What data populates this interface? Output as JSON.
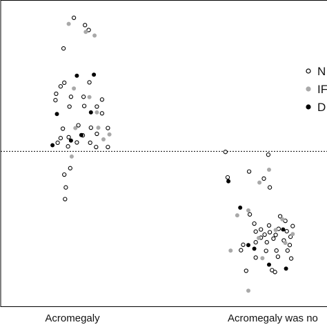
{
  "chart_data": {
    "type": "scatter",
    "title": "",
    "xlabel": "",
    "ylabel": "",
    "categories": [
      "Acromegaly",
      "Acromegaly was no"
    ],
    "ylim": [
      0,
      100
    ],
    "reference_line": {
      "y": 50.6,
      "style": "dotted"
    },
    "legend_position": "right",
    "series": [
      {
        "name": "N",
        "marker": "open-circle",
        "color": "#000000",
        "points": [
          [
            1.02,
            94.2
          ],
          [
            1.17,
            91.8
          ],
          [
            1.22,
            90.2
          ],
          [
            0.88,
            84.2
          ],
          [
            0.89,
            73.0
          ],
          [
            0.84,
            71.8
          ],
          [
            1.23,
            73.1
          ],
          [
            0.98,
            68.4
          ],
          [
            0.78,
            69.4
          ],
          [
            1.15,
            68.4
          ],
          [
            1.4,
            67.5
          ],
          [
            0.77,
            67.3
          ],
          [
            0.96,
            65.2
          ],
          [
            1.16,
            65.4
          ],
          [
            1.33,
            65.2
          ],
          [
            1.4,
            63.0
          ],
          [
            0.87,
            58.0
          ],
          [
            1.08,
            59.1
          ],
          [
            1.25,
            58.3
          ],
          [
            1.48,
            58.2
          ],
          [
            1.33,
            56.3
          ],
          [
            1.14,
            55.8
          ],
          [
            0.95,
            55.2
          ],
          [
            0.84,
            54.9
          ],
          [
            1.06,
            53.5
          ],
          [
            0.8,
            53.4
          ],
          [
            1.24,
            53.4
          ],
          [
            1.32,
            52.0
          ],
          [
            1.48,
            52.0
          ],
          [
            0.94,
            52.2
          ],
          [
            0.97,
            45.1
          ],
          [
            0.89,
            43.0
          ],
          [
            0.91,
            38.8
          ],
          [
            0.9,
            35.0
          ],
          [
            3.07,
            50.4
          ],
          [
            3.65,
            49.5
          ],
          [
            3.39,
            44.0
          ],
          [
            3.1,
            42.1
          ],
          [
            3.59,
            41.7
          ],
          [
            3.67,
            38.8
          ],
          [
            3.4,
            30.0
          ],
          [
            3.81,
            29.4
          ],
          [
            3.88,
            27.9
          ],
          [
            3.46,
            27.0
          ],
          [
            3.66,
            26.4
          ],
          [
            3.98,
            26.2
          ],
          [
            3.55,
            25.1
          ],
          [
            3.79,
            25.3
          ],
          [
            3.48,
            24.4
          ],
          [
            3.67,
            24.2
          ],
          [
            3.9,
            24.5
          ],
          [
            3.6,
            23.4
          ],
          [
            3.75,
            23.3
          ],
          [
            3.55,
            22.4
          ],
          [
            3.72,
            22.1
          ],
          [
            3.95,
            22.7
          ],
          [
            3.86,
            21.5
          ],
          [
            3.48,
            20.9
          ],
          [
            3.63,
            20.9
          ],
          [
            3.94,
            20.0
          ],
          [
            3.31,
            20.1
          ],
          [
            3.28,
            18.3
          ],
          [
            3.76,
            18.2
          ],
          [
            3.62,
            18.1
          ],
          [
            3.91,
            18.2
          ],
          [
            3.48,
            15.9
          ],
          [
            3.78,
            16.2
          ],
          [
            3.96,
            15.6
          ],
          [
            3.7,
            11.8
          ],
          [
            3.74,
            11.2
          ],
          [
            3.35,
            11.6
          ]
        ]
      },
      {
        "name": "IF",
        "marker": "filled-circle",
        "color": "#a9a9a9",
        "points": [
          [
            0.95,
            92.2
          ],
          [
            1.18,
            89.6
          ],
          [
            1.3,
            88.4
          ],
          [
            1.02,
            71.1
          ],
          [
            1.23,
            68.3
          ],
          [
            1.33,
            63.3
          ],
          [
            1.35,
            58.3
          ],
          [
            1.04,
            58.2
          ],
          [
            1.5,
            56.1
          ],
          [
            1.42,
            54.5
          ],
          [
            0.99,
            48.9
          ],
          [
            3.66,
            44.6
          ],
          [
            3.53,
            40.4
          ],
          [
            3.38,
            31.3
          ],
          [
            3.23,
            29.7
          ],
          [
            3.84,
            28.4
          ],
          [
            3.75,
            24.9
          ],
          [
            3.52,
            22.3
          ],
          [
            3.98,
            23.6
          ],
          [
            3.14,
            18.2
          ],
          [
            3.57,
            15.7
          ],
          [
            3.38,
            5.1
          ],
          [
            3.88,
            20.7
          ]
        ]
      },
      {
        "name": "D",
        "marker": "filled-circle",
        "color": "#000000",
        "points": [
          [
            1.06,
            75.3
          ],
          [
            1.29,
            75.6
          ],
          [
            0.79,
            62.8
          ],
          [
            1.25,
            63.3
          ],
          [
            1.12,
            55.9
          ],
          [
            0.98,
            54.1
          ],
          [
            0.73,
            52.6
          ],
          [
            3.11,
            40.8
          ],
          [
            3.27,
            32.2
          ],
          [
            3.85,
            25.1
          ],
          [
            3.38,
            20.0
          ],
          [
            3.66,
            13.6
          ],
          [
            3.89,
            12.3
          ],
          [
            3.46,
            18.8
          ]
        ]
      }
    ]
  }
}
